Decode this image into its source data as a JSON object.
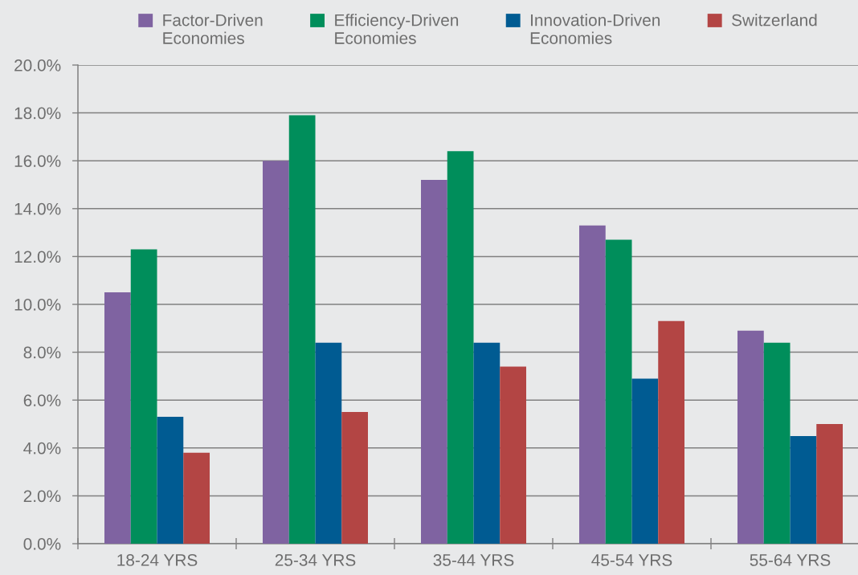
{
  "chart_data": {
    "type": "bar",
    "categories": [
      "18-24 YRS",
      "25-34 YRS",
      "35-44 YRS",
      "45-54 YRS",
      "55-64 YRS"
    ],
    "series": [
      {
        "name": "Factor-Driven\nEconomies",
        "color": "#7f63a1",
        "values": [
          10.5,
          16.0,
          15.2,
          13.3,
          8.9
        ]
      },
      {
        "name": "Efficiency-Driven\nEconomies",
        "color": "#008e5b",
        "values": [
          12.3,
          17.9,
          16.4,
          12.7,
          8.4
        ]
      },
      {
        "name": "Innovation-Driven\nEconomies",
        "color": "#005b92",
        "values": [
          5.3,
          8.4,
          8.4,
          6.9,
          4.5
        ]
      },
      {
        "name": "Switzerland",
        "color": "#b34544",
        "values": [
          3.8,
          5.5,
          7.4,
          9.3,
          5.0
        ]
      }
    ],
    "ylim": [
      0,
      20
    ],
    "yticks": [
      {
        "value": 0,
        "label": "0.0%"
      },
      {
        "value": 2,
        "label": "2.0%"
      },
      {
        "value": 4,
        "label": "4.0%"
      },
      {
        "value": 6,
        "label": "6.0%"
      },
      {
        "value": 8,
        "label": "8.0%"
      },
      {
        "value": 10,
        "label": "10.0%"
      },
      {
        "value": 12,
        "label": "12.0%"
      },
      {
        "value": 14,
        "label": "14.0%"
      },
      {
        "value": 16,
        "label": "16.0%"
      },
      {
        "value": 18,
        "label": "18.0%"
      },
      {
        "value": 20,
        "label": "20.0%"
      }
    ],
    "grid": "y",
    "legend": "top"
  }
}
